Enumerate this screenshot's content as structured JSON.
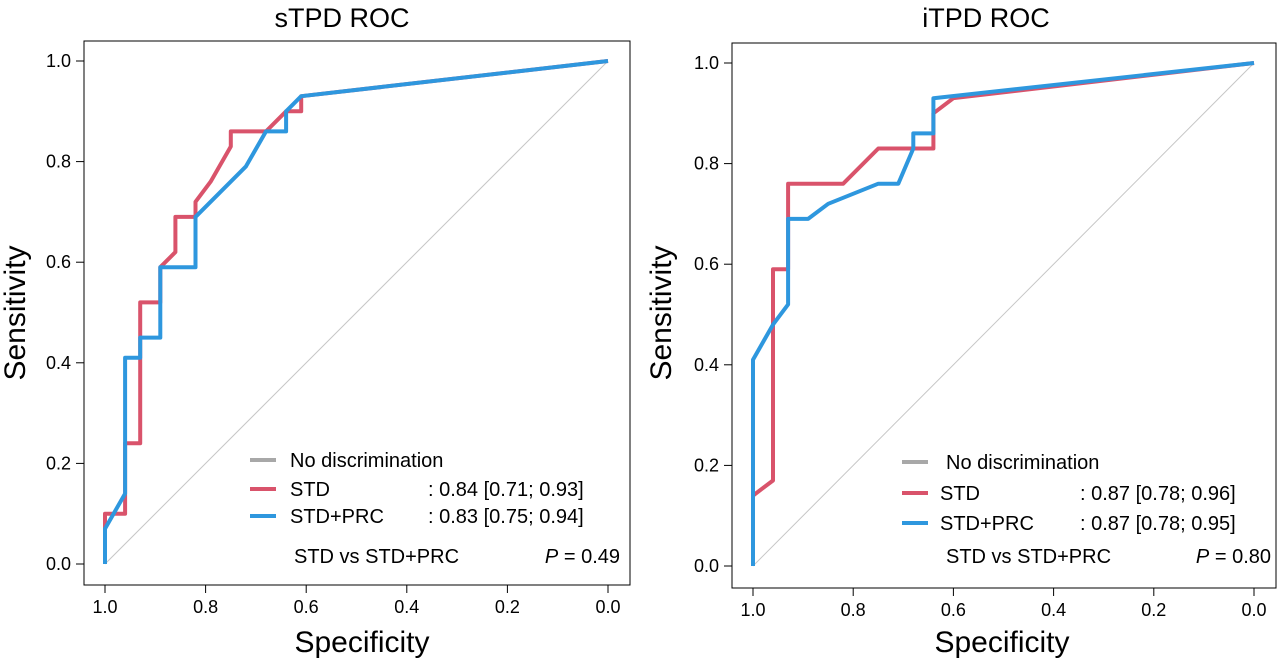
{
  "chart_data": [
    {
      "type": "line",
      "title": "sTPD ROC",
      "xlabel": "Specificity",
      "ylabel": "Sensitivity",
      "xlim": [
        1.0,
        0.0
      ],
      "ylim": [
        0.0,
        1.0
      ],
      "x_reversed": true,
      "xticks": [
        "1.0",
        "0.8",
        "0.6",
        "0.4",
        "0.2",
        "0.0"
      ],
      "yticks": [
        "0.0",
        "0.2",
        "0.4",
        "0.6",
        "0.8",
        "1.0"
      ],
      "grid": false,
      "legend_position": "bottom-right",
      "reference_line": {
        "label": "No discrimination",
        "color": "#a8a8a8",
        "points": [
          [
            1.0,
            0.0
          ],
          [
            0.0,
            1.0
          ]
        ]
      },
      "series": [
        {
          "name": "STD",
          "color": "#d9536b",
          "auc_label": ":  0.84 [0.71; 0.93]",
          "points": [
            [
              1.0,
              0.0
            ],
            [
              1.0,
              0.1
            ],
            [
              0.96,
              0.1
            ],
            [
              0.96,
              0.24
            ],
            [
              0.93,
              0.24
            ],
            [
              0.93,
              0.52
            ],
            [
              0.89,
              0.52
            ],
            [
              0.89,
              0.59
            ],
            [
              0.86,
              0.62
            ],
            [
              0.86,
              0.69
            ],
            [
              0.82,
              0.69
            ],
            [
              0.82,
              0.72
            ],
            [
              0.79,
              0.76
            ],
            [
              0.75,
              0.83
            ],
            [
              0.75,
              0.86
            ],
            [
              0.68,
              0.86
            ],
            [
              0.64,
              0.9
            ],
            [
              0.61,
              0.9
            ],
            [
              0.61,
              0.93
            ],
            [
              0.0,
              1.0
            ]
          ]
        },
        {
          "name": "STD+PRC",
          "color": "#2e97de",
          "auc_label": ":  0.83 [0.75; 0.94]",
          "points": [
            [
              1.0,
              0.0
            ],
            [
              1.0,
              0.07
            ],
            [
              0.96,
              0.14
            ],
            [
              0.96,
              0.41
            ],
            [
              0.93,
              0.41
            ],
            [
              0.93,
              0.45
            ],
            [
              0.89,
              0.45
            ],
            [
              0.89,
              0.59
            ],
            [
              0.82,
              0.59
            ],
            [
              0.82,
              0.69
            ],
            [
              0.72,
              0.79
            ],
            [
              0.68,
              0.86
            ],
            [
              0.64,
              0.86
            ],
            [
              0.64,
              0.9
            ],
            [
              0.61,
              0.93
            ],
            [
              0.0,
              1.0
            ]
          ]
        }
      ],
      "comparison": {
        "label": "STD vs STD+PRC",
        "p_symbol": "P",
        "p_value": "= 0.49"
      }
    },
    {
      "type": "line",
      "title": "iTPD ROC",
      "xlabel": "Specificity",
      "ylabel": "Sensitivity",
      "xlim": [
        1.0,
        0.0
      ],
      "ylim": [
        0.0,
        1.0
      ],
      "x_reversed": true,
      "xticks": [
        "1.0",
        "0.8",
        "0.6",
        "0.4",
        "0.2",
        "0.0"
      ],
      "yticks": [
        "0.0",
        "0.2",
        "0.4",
        "0.6",
        "0.8",
        "1.0"
      ],
      "grid": false,
      "legend_position": "bottom-right",
      "reference_line": {
        "label": "No discrimination",
        "color": "#a8a8a8",
        "points": [
          [
            1.0,
            0.0
          ],
          [
            0.0,
            1.0
          ]
        ]
      },
      "series": [
        {
          "name": "STD",
          "color": "#d9536b",
          "auc_label": ":  0.87 [0.78; 0.96]",
          "points": [
            [
              1.0,
              0.14
            ],
            [
              0.96,
              0.17
            ],
            [
              0.96,
              0.59
            ],
            [
              0.93,
              0.59
            ],
            [
              0.93,
              0.76
            ],
            [
              0.82,
              0.76
            ],
            [
              0.75,
              0.83
            ],
            [
              0.64,
              0.83
            ],
            [
              0.64,
              0.9
            ],
            [
              0.6,
              0.93
            ],
            [
              0.0,
              1.0
            ]
          ]
        },
        {
          "name": "STD+PRC",
          "color": "#2e97de",
          "auc_label": ":  0.87 [0.78; 0.95]",
          "points": [
            [
              1.0,
              0.0
            ],
            [
              1.0,
              0.41
            ],
            [
              0.96,
              0.48
            ],
            [
              0.93,
              0.52
            ],
            [
              0.93,
              0.69
            ],
            [
              0.89,
              0.69
            ],
            [
              0.85,
              0.72
            ],
            [
              0.75,
              0.76
            ],
            [
              0.71,
              0.76
            ],
            [
              0.68,
              0.83
            ],
            [
              0.68,
              0.86
            ],
            [
              0.64,
              0.86
            ],
            [
              0.64,
              0.93
            ],
            [
              0.0,
              1.0
            ]
          ]
        }
      ],
      "comparison": {
        "label": "STD vs STD+PRC",
        "p_symbol": "P",
        "p_value": "= 0.80"
      }
    }
  ]
}
